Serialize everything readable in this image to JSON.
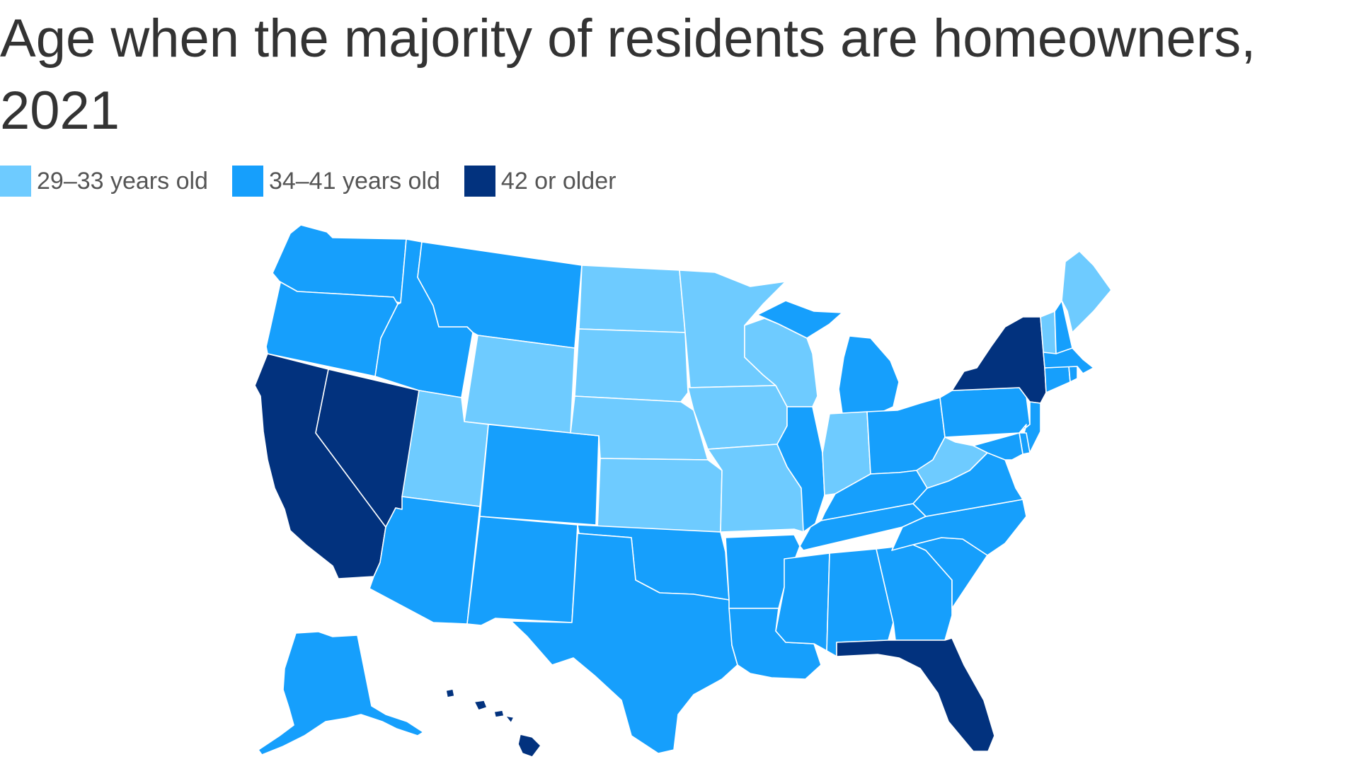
{
  "title": "Age when the majority of residents are homeowners, 2021",
  "legend": [
    {
      "key": "c1",
      "label": "29–33 years old",
      "color": "#6ecbff"
    },
    {
      "key": "c2",
      "label": "34–41 years old",
      "color": "#169ffc"
    },
    {
      "key": "c3",
      "label": "42 or older",
      "color": "#02327e"
    }
  ],
  "states": [
    {
      "id": "WA",
      "category": "c2"
    },
    {
      "id": "OR",
      "category": "c2"
    },
    {
      "id": "CA",
      "category": "c3"
    },
    {
      "id": "NV",
      "category": "c3"
    },
    {
      "id": "ID",
      "category": "c2"
    },
    {
      "id": "MT",
      "category": "c2"
    },
    {
      "id": "WY",
      "category": "c1"
    },
    {
      "id": "UT",
      "category": "c1"
    },
    {
      "id": "AZ",
      "category": "c2"
    },
    {
      "id": "CO",
      "category": "c2"
    },
    {
      "id": "NM",
      "category": "c2"
    },
    {
      "id": "ND",
      "category": "c1"
    },
    {
      "id": "SD",
      "category": "c1"
    },
    {
      "id": "NE",
      "category": "c1"
    },
    {
      "id": "KS",
      "category": "c1"
    },
    {
      "id": "OK",
      "category": "c2"
    },
    {
      "id": "TX",
      "category": "c2"
    },
    {
      "id": "MN",
      "category": "c1"
    },
    {
      "id": "IA",
      "category": "c1"
    },
    {
      "id": "MO",
      "category": "c1"
    },
    {
      "id": "AR",
      "category": "c2"
    },
    {
      "id": "LA",
      "category": "c2"
    },
    {
      "id": "WI",
      "category": "c1"
    },
    {
      "id": "IL",
      "category": "c2"
    },
    {
      "id": "MI",
      "category": "c2"
    },
    {
      "id": "IN",
      "category": "c1"
    },
    {
      "id": "OH",
      "category": "c2"
    },
    {
      "id": "KY",
      "category": "c2"
    },
    {
      "id": "TN",
      "category": "c2"
    },
    {
      "id": "MS",
      "category": "c2"
    },
    {
      "id": "AL",
      "category": "c2"
    },
    {
      "id": "GA",
      "category": "c2"
    },
    {
      "id": "FL",
      "category": "c3"
    },
    {
      "id": "SC",
      "category": "c2"
    },
    {
      "id": "NC",
      "category": "c2"
    },
    {
      "id": "VA",
      "category": "c2"
    },
    {
      "id": "WV",
      "category": "c1"
    },
    {
      "id": "PA",
      "category": "c2"
    },
    {
      "id": "NY",
      "category": "c3"
    },
    {
      "id": "VT",
      "category": "c1"
    },
    {
      "id": "NH",
      "category": "c2"
    },
    {
      "id": "ME",
      "category": "c1"
    },
    {
      "id": "MA",
      "category": "c2"
    },
    {
      "id": "CT",
      "category": "c2"
    },
    {
      "id": "RI",
      "category": "c2"
    },
    {
      "id": "NJ",
      "category": "c2"
    },
    {
      "id": "DE",
      "category": "c2"
    },
    {
      "id": "MD",
      "category": "c2"
    },
    {
      "id": "AK",
      "category": "c2"
    },
    {
      "id": "HI",
      "category": "c3"
    }
  ]
}
